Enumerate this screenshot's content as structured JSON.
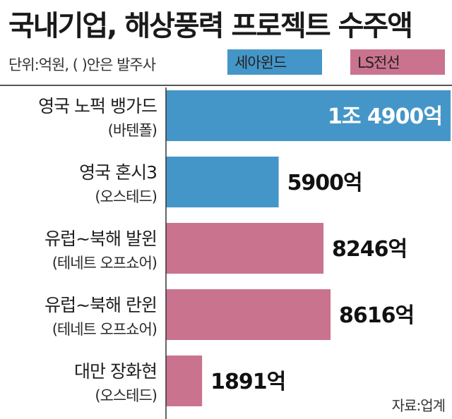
{
  "chart_data": {
    "type": "bar",
    "orientation": "horizontal",
    "title": "국내기업, 해상풍력 프로젝트 수주액",
    "unit_note": "단위:억원, ( )안은 발주사",
    "source": "자료:업계",
    "legend": [
      {
        "name": "세아윈드",
        "color": "#4596c8"
      },
      {
        "name": "LS전선",
        "color": "#c9738f"
      }
    ],
    "categories": [
      {
        "name": "영국 노퍽 뱅가드",
        "client": "(바텐폴)",
        "value": 14900,
        "value_label": "1조 4900억",
        "company": "세아윈드"
      },
      {
        "name": "영국 혼시3",
        "client": "(오스테드)",
        "value": 5900,
        "value_label": "5900억",
        "company": "세아윈드"
      },
      {
        "name": "유럽~북해 발윈",
        "client": "(테네트 오프쇼어)",
        "value": 8246,
        "value_label": "8246억",
        "company": "LS전선"
      },
      {
        "name": "유럽~북해 란윈",
        "client": "(테네트 오프쇼어)",
        "value": 8616,
        "value_label": "8616억",
        "company": "LS전선"
      },
      {
        "name": "대만 장화현",
        "client": "(오스테드)",
        "value": 1891,
        "value_label": "1891억",
        "company": "LS전선"
      }
    ],
    "grid": false,
    "legend_position": "top-right"
  }
}
